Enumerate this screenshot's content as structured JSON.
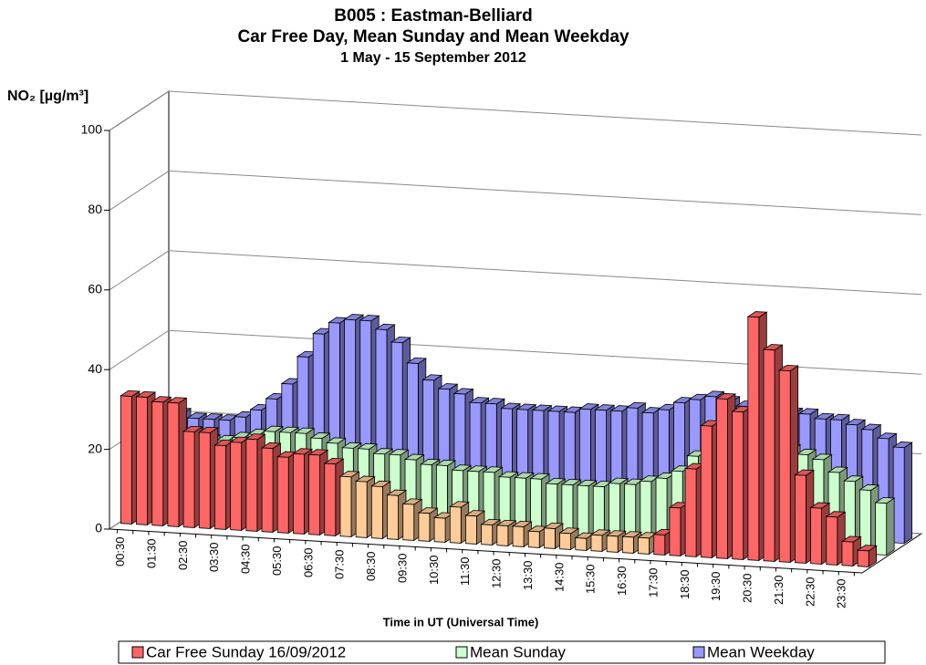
{
  "chart_data": {
    "type": "bar3d",
    "title": "B005 : Eastman-Belliard",
    "subtitle": "Car Free Day, Mean Sunday and Mean Weekday",
    "period": "1 May - 15 September 2012",
    "ylabel": "NO₂  [µg/m³]",
    "xlabel": "Time in UT (Universal Time)",
    "categories": [
      "00:30",
      null,
      "01:30",
      null,
      "02:30",
      null,
      "03:30",
      null,
      "04:30",
      null,
      "05:30",
      null,
      "06:30",
      null,
      "07:30",
      null,
      "08:30",
      null,
      "09:30",
      null,
      "10:30",
      null,
      "11:30",
      null,
      "12:30",
      null,
      "13:30",
      null,
      "14:30",
      null,
      "15:30",
      null,
      "16:30",
      null,
      "17:30",
      null,
      "18:30",
      null,
      "19:30",
      null,
      "20:30",
      null,
      "21:30",
      null,
      "22:30",
      null,
      "23:30",
      null
    ],
    "series": [
      {
        "name": "Car Free Sunday 16/09/2012",
        "color": "#ff6666",
        "colors": [
          "#ff6666",
          "#ff6666",
          "#ff6666",
          "#ff6666",
          "#ff6666",
          "#ff6666",
          "#ff6666",
          "#ff6666",
          "#ff6666",
          "#ff6666",
          "#ff6666",
          "#ff6666",
          "#ff6666",
          "#ff6666",
          "#ffcc99",
          "#ffcc99",
          "#ffcc99",
          "#ffcc99",
          "#ffcc99",
          "#ffcc99",
          "#ffcc99",
          "#ffcc99",
          "#ffcc99",
          "#ffcc99",
          "#ffcc99",
          "#ffcc99",
          "#ffcc99",
          "#ffcc99",
          "#ffcc99",
          "#ffcc99",
          "#ffcc99",
          "#ffcc99",
          "#ffcc99",
          "#ffcc99",
          "#ff6666",
          "#ff6666",
          "#ff6666",
          "#ff6666",
          "#ff6666",
          "#ff6666",
          "#ff6666",
          "#ff6666",
          "#ff6666",
          "#ff6666",
          "#ff6666",
          "#ff6666",
          "#ff6666",
          "#ff6666"
        ],
        "values": [
          32,
          32,
          31,
          31,
          24,
          24,
          21,
          22,
          23,
          21,
          19,
          20,
          20,
          18,
          15,
          14,
          13,
          11,
          9,
          7,
          6,
          9,
          7,
          5,
          5,
          5,
          4,
          5,
          4,
          3,
          4,
          4,
          4,
          4,
          5,
          12,
          22,
          33,
          40,
          37,
          61,
          53,
          48,
          22,
          14,
          12,
          6,
          4
        ]
      },
      {
        "name": "Mean Sunday",
        "color": "#ccffcc",
        "values": [
          22,
          21,
          20,
          20,
          19,
          19,
          20,
          21,
          22,
          22,
          22,
          21,
          20,
          19,
          19,
          18,
          18,
          17,
          16,
          16,
          15,
          15,
          15,
          14,
          14,
          14,
          13,
          13,
          13,
          13,
          14,
          14,
          15,
          16,
          18,
          22,
          24,
          26,
          28,
          28,
          26,
          25,
          24,
          23,
          20,
          18,
          16,
          13
        ]
      },
      {
        "name": "Mean Weekday",
        "color": "#9999ff",
        "values": [
          23,
          22,
          21,
          21,
          21,
          22,
          24,
          27,
          31,
          38,
          44,
          47,
          48,
          48,
          46,
          43,
          38,
          34,
          32,
          31,
          29,
          29,
          28,
          28,
          28,
          28,
          28,
          29,
          29,
          29,
          30,
          29,
          30,
          32,
          33,
          34,
          33,
          32,
          32,
          32,
          31,
          31,
          30,
          30,
          29,
          28,
          26,
          24
        ]
      }
    ],
    "ylim": [
      0,
      100
    ],
    "yticks": [
      0,
      20,
      40,
      60,
      80,
      100
    ],
    "grid": true,
    "legend": "bottom"
  }
}
